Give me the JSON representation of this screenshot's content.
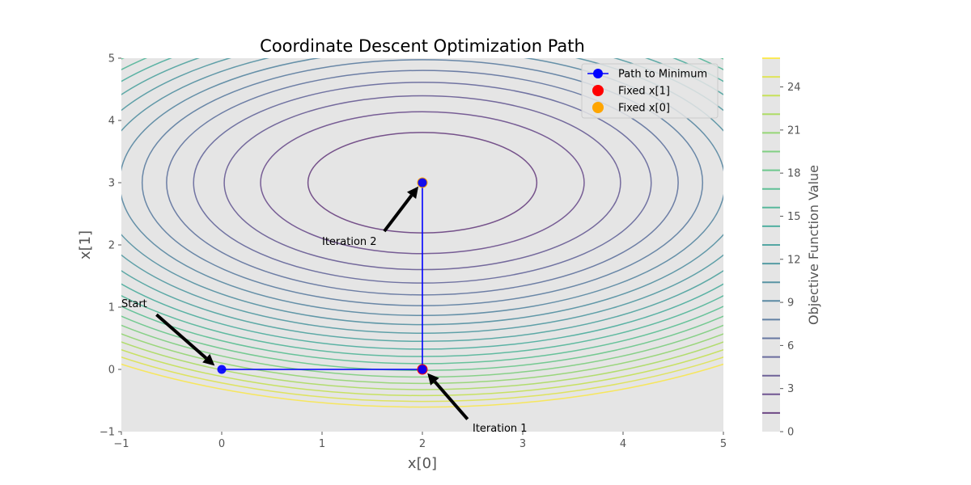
{
  "chart_data": {
    "type": "line",
    "title": "Coordinate Descent Optimization Path",
    "xlabel": "x[0]",
    "ylabel": "x[1]",
    "xlim": [
      -1,
      5
    ],
    "ylim": [
      -1,
      5
    ],
    "xticks": [
      -1,
      0,
      1,
      2,
      3,
      4,
      5
    ],
    "yticks": [
      -1,
      0,
      1,
      2,
      3,
      4,
      5
    ],
    "xtick_labels": [
      "−1",
      "0",
      "1",
      "2",
      "3",
      "4",
      "5"
    ],
    "ytick_labels": [
      "−1",
      "0",
      "1",
      "2",
      "3",
      "4",
      "5"
    ],
    "grid": false,
    "background": "#e5e5e5",
    "contour": {
      "function": "(x0 - 2)^2 + 2*(x1 - 3)^2",
      "center": [
        2,
        3
      ],
      "levels": [
        1.3,
        2.6,
        3.9,
        5.2,
        6.5,
        7.8,
        9.1,
        10.4,
        11.7,
        13.0,
        14.3,
        15.6,
        16.9,
        18.2,
        19.5,
        20.8,
        22.1,
        23.4,
        24.7,
        26.0
      ],
      "colormap": "viridis"
    },
    "colorbar": {
      "label": "Objective Function Value",
      "range": [
        0,
        26
      ],
      "ticks": [
        0,
        3,
        6,
        9,
        12,
        15,
        18,
        21,
        24
      ],
      "tick_labels": [
        "0",
        "3",
        "6",
        "9",
        "12",
        "15",
        "18",
        "21",
        "24"
      ]
    },
    "series": [
      {
        "name": "Path to Minimum",
        "color": "#0000ff",
        "marker": "circle",
        "points": [
          [
            0,
            0
          ],
          [
            2,
            0
          ],
          [
            2,
            3
          ]
        ]
      }
    ],
    "scatter": [
      {
        "name": "Fixed x[1]",
        "color": "#ff0000",
        "points": [
          [
            2,
            0
          ]
        ]
      },
      {
        "name": "Fixed x[0]",
        "color": "#ffa500",
        "points": [
          [
            2,
            3
          ]
        ]
      }
    ],
    "annotations": [
      {
        "text": "Start",
        "text_at": [
          -1,
          1
        ],
        "arrow_from": [
          -0.65,
          0.88
        ],
        "arrow_to": [
          -0.07,
          0.06
        ]
      },
      {
        "text": "Iteration 1",
        "text_at": [
          2.5,
          -1
        ],
        "arrow_from": [
          2.45,
          -0.8
        ],
        "arrow_to": [
          2.05,
          -0.06
        ]
      },
      {
        "text": "Iteration 2",
        "text_at": [
          1,
          2
        ],
        "arrow_from": [
          1.62,
          2.22
        ],
        "arrow_to": [
          1.96,
          2.94
        ]
      }
    ],
    "legend": {
      "position": "top-right",
      "entries": [
        "Path to Minimum",
        "Fixed x[1]",
        "Fixed x[0]"
      ]
    }
  }
}
